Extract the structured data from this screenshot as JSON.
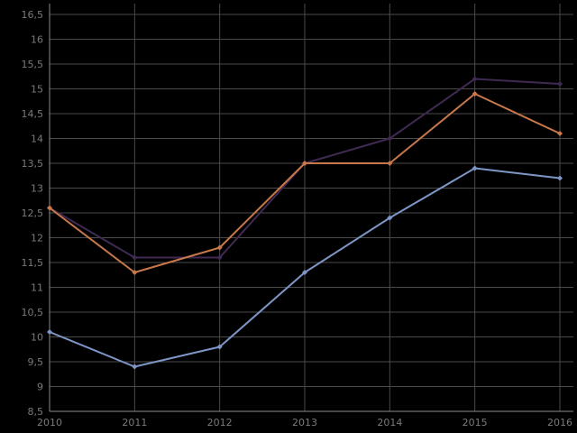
{
  "chart_data": {
    "type": "line",
    "x": [
      "2010",
      "2011",
      "2012",
      "2013",
      "2014",
      "2015",
      "2016"
    ],
    "ylim": [
      8.5,
      16.5
    ],
    "y_ticks": [
      "8,5",
      "9",
      "9,5",
      "10",
      "10,5",
      "11",
      "11,5",
      "12",
      "12,5",
      "13",
      "13,5",
      "14",
      "14,5",
      "15",
      "15,5",
      "16",
      "16,5"
    ],
    "y_tick_values": [
      8.5,
      9,
      9.5,
      10,
      10.5,
      11,
      11.5,
      12,
      12.5,
      13,
      13.5,
      14,
      14.5,
      15,
      15.5,
      16,
      16.5
    ],
    "grid": true,
    "legend": "none",
    "series": [
      {
        "color": "#3f2a52",
        "values": [
          12.6,
          11.6,
          11.6,
          13.5,
          14.0,
          15.2,
          15.1
        ]
      },
      {
        "color": "#c8784a",
        "values": [
          12.6,
          11.3,
          11.8,
          13.5,
          13.5,
          14.9,
          14.1
        ]
      },
      {
        "color": "#7e96c6",
        "values": [
          10.1,
          9.4,
          9.8,
          11.3,
          12.4,
          13.4,
          13.2
        ]
      }
    ]
  }
}
